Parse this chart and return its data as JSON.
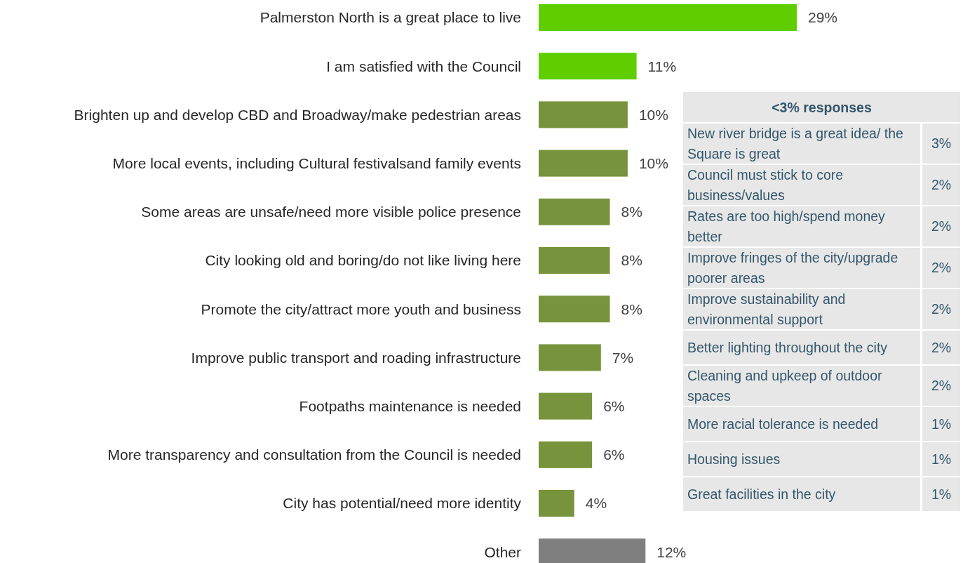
{
  "chart_data": [
    {
      "type": "bar",
      "orientation": "horizontal",
      "categories": [
        "Palmerston North is a great place to live",
        "I am satisfied with the Council",
        "Brighten up and develop CBD and Broadway/make pedestrian areas",
        "More local events, including Cultural festivalsand family events",
        "Some areas are unsafe/need more visible police presence",
        "City looking old and boring/do not like living here",
        "Promote the city/attract more youth and business",
        "Improve public transport and roading infrastructure",
        "Footpaths maintenance is needed",
        "More transparency and consultation from the Council is needed",
        "City has potential/need more identity",
        "Other"
      ],
      "values": [
        29,
        11,
        10,
        10,
        8,
        8,
        8,
        7,
        6,
        6,
        4,
        12
      ],
      "value_labels": [
        "29%",
        "11%",
        "10%",
        "10%",
        "8%",
        "8%",
        "8%",
        "7%",
        "6%",
        "6%",
        "4%",
        "12%"
      ],
      "colors": [
        "#5ece00",
        "#5ece00",
        "#77933c",
        "#77933c",
        "#77933c",
        "#77933c",
        "#77933c",
        "#77933c",
        "#77933c",
        "#77933c",
        "#77933c",
        "#7f7f7f"
      ]
    },
    {
      "type": "other",
      "title": "<3% responses",
      "categories": [
        "New river bridge is a great idea/ the Square is great",
        "Council must stick to core business/values",
        "Rates are too high/spend money better",
        "Improve fringes of the city/upgrade poorer areas",
        "Improve sustainability and environmental support",
        "Better lighting throughout the city",
        "Cleaning and upkeep of outdoor spaces",
        "More racial tolerance is needed",
        "Housing issues",
        "Great facilities in the city"
      ],
      "value_labels": [
        "3%",
        "2%",
        "2%",
        "2%",
        "2%",
        "2%",
        "2%",
        "1%",
        "1%",
        "1%"
      ]
    }
  ]
}
